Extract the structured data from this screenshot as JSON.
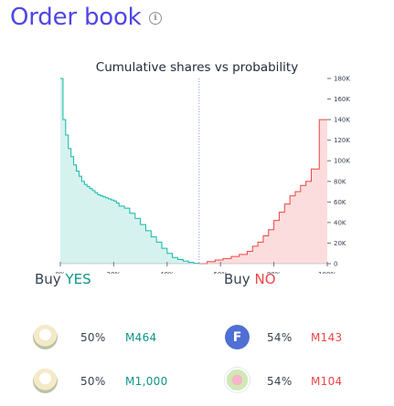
{
  "header": {
    "title": "Order book",
    "info_icon": "info-circle-icon"
  },
  "chart_data": {
    "type": "area",
    "title": "Cumulative shares vs probability",
    "x_ticks": [
      "0%",
      "20%",
      "40%",
      "60%",
      "80%",
      "100%"
    ],
    "y_ticks": [
      "0",
      "20K",
      "40K",
      "60K",
      "80K",
      "100K",
      "120K",
      "140K",
      "160K",
      "180K"
    ],
    "xlim": [
      0,
      100
    ],
    "ylim": [
      0,
      180000
    ],
    "current_probability": 52,
    "series": [
      {
        "color": "#14b8a6",
        "x": [
          0,
          1,
          2,
          3,
          4,
          5,
          6,
          7,
          8,
          9,
          10,
          11,
          12,
          13,
          14,
          15,
          16,
          17,
          18,
          19,
          20,
          21,
          22,
          24,
          26,
          28,
          30,
          32,
          34,
          36,
          38,
          40,
          42,
          44,
          46,
          48,
          50,
          52
        ],
        "y": [
          180000,
          140000,
          125000,
          112000,
          104000,
          96000,
          90000,
          85000,
          80000,
          77000,
          75000,
          73000,
          71000,
          69000,
          67000,
          66000,
          65000,
          64000,
          63000,
          62000,
          61000,
          59000,
          56000,
          54000,
          49000,
          44000,
          38000,
          32000,
          26000,
          21000,
          15000,
          10000,
          6000,
          4000,
          2500,
          1200,
          300,
          0
        ]
      },
      {
        "color": "#ef4444",
        "x": [
          52,
          55,
          58,
          61,
          64,
          67,
          70,
          72,
          74,
          76,
          78,
          80,
          82,
          84,
          86,
          88,
          90,
          92,
          94,
          96,
          97,
          98,
          99,
          100
        ],
        "y": [
          0,
          2000,
          3500,
          5000,
          7000,
          9000,
          12000,
          17000,
          21000,
          27000,
          33000,
          42000,
          50000,
          58000,
          66000,
          70000,
          76000,
          80000,
          92000,
          92000,
          140000,
          140000,
          140000,
          140000
        ]
      }
    ]
  },
  "buy_yes": {
    "prefix": "Buy",
    "outcome": "YES",
    "orders": [
      {
        "prob": "50%",
        "amount": "M464",
        "avatar_icon": "user-avatar-icon"
      },
      {
        "prob": "50%",
        "amount": "M1,000",
        "avatar_icon": "user-avatar-icon"
      }
    ]
  },
  "buy_no": {
    "prefix": "Buy",
    "outcome": "NO",
    "orders": [
      {
        "prob": "54%",
        "amount": "M143",
        "avatar_letter": "F",
        "avatar_icon": "user-avatar-icon"
      },
      {
        "prob": "54%",
        "amount": "M104",
        "avatar_icon": "user-avatar-icon"
      }
    ]
  }
}
